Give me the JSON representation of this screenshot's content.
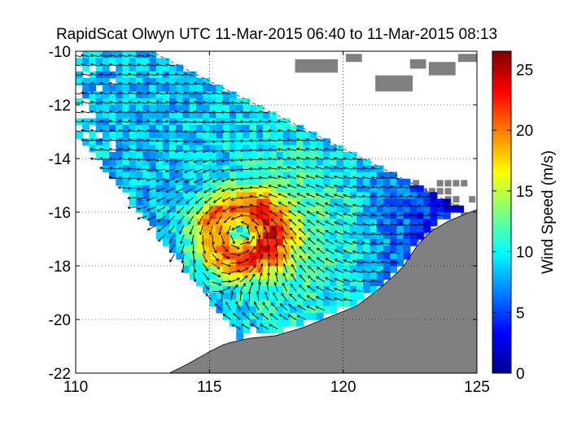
{
  "figure": {
    "title": "RapidScat Olwyn UTC 11-Mar-2015 06:40 to 11-Mar-2015 08:13",
    "x_ticks": [
      "110",
      "115",
      "120",
      "125"
    ],
    "y_ticks": [
      "-10",
      "-12",
      "-14",
      "-16",
      "-18",
      "-20",
      "-22"
    ],
    "colorbar": {
      "label": "Wind Speed (m/s)",
      "ticks": [
        "0",
        "5",
        "10",
        "15",
        "20",
        "25"
      ],
      "range": [
        0,
        26.5
      ],
      "colormap": "jet"
    }
  },
  "chart_data": {
    "type": "heatmap",
    "title": "RapidScat Olwyn UTC 11-Mar-2015 06:40 to 11-Mar-2015 08:13",
    "xlabel": "",
    "ylabel": "",
    "xlim": [
      110,
      125
    ],
    "ylim": [
      -22,
      -10
    ],
    "grid": true,
    "storm_center": {
      "lon": 116.2,
      "lat": -16.8
    },
    "swath": {
      "edge_ne": [
        [
          112.8,
          -10
        ],
        [
          124.5,
          -15.9
        ]
      ],
      "edge_sw": [
        [
          110,
          -13
        ],
        [
          116,
          -20.5
        ]
      ]
    },
    "vectors": "wind direction arrows, counter-clockwise circulation around storm center",
    "value_range": [
      0,
      26.5
    ],
    "value_label": "Wind Speed (m/s)",
    "colors": {
      "land": "#808080",
      "background": "#ffffff",
      "coast": "#000000"
    }
  }
}
